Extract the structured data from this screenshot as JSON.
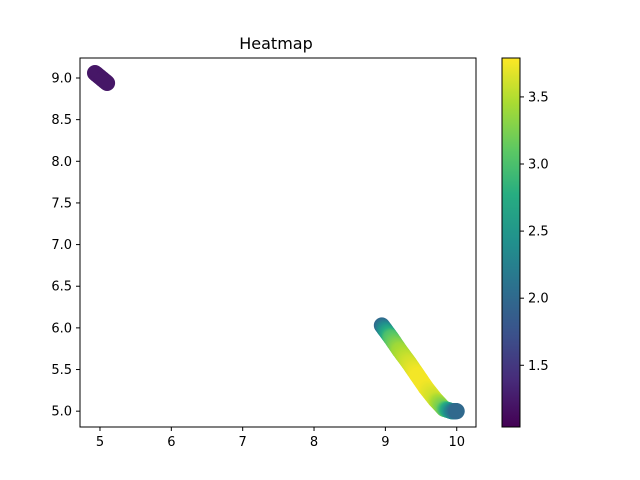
{
  "chart_data": {
    "type": "scatter",
    "title": "Heatmap",
    "xlabel": "",
    "ylabel": "",
    "xlim": [
      4.72,
      10.27
    ],
    "ylim": [
      4.81,
      9.24
    ],
    "x_ticks": [
      5,
      6,
      7,
      8,
      9,
      10
    ],
    "y_ticks": [
      5.0,
      5.5,
      6.0,
      6.5,
      7.0,
      7.5,
      8.0,
      8.5,
      9.0
    ],
    "colormap": "viridis",
    "color_range": [
      1.04,
      3.79
    ],
    "colorbar_ticks": [
      1.5,
      2.0,
      2.5,
      3.0,
      3.5
    ],
    "grid": false,
    "segments": [
      {
        "x": [
          4.93,
          5.1
        ],
        "y": [
          9.06,
          8.94
        ],
        "c": [
          1.22,
          1.22
        ]
      },
      {
        "x": [
          8.95,
          9.08,
          9.2,
          9.33,
          9.45,
          9.57,
          9.7,
          9.82,
          9.93,
          10.0
        ],
        "y": [
          6.03,
          5.88,
          5.73,
          5.58,
          5.43,
          5.28,
          5.14,
          5.03,
          5.0,
          5.0
        ],
        "c": [
          2.0,
          3.0,
          3.4,
          3.6,
          3.75,
          3.75,
          3.6,
          3.2,
          2.4,
          2.0
        ]
      }
    ]
  }
}
